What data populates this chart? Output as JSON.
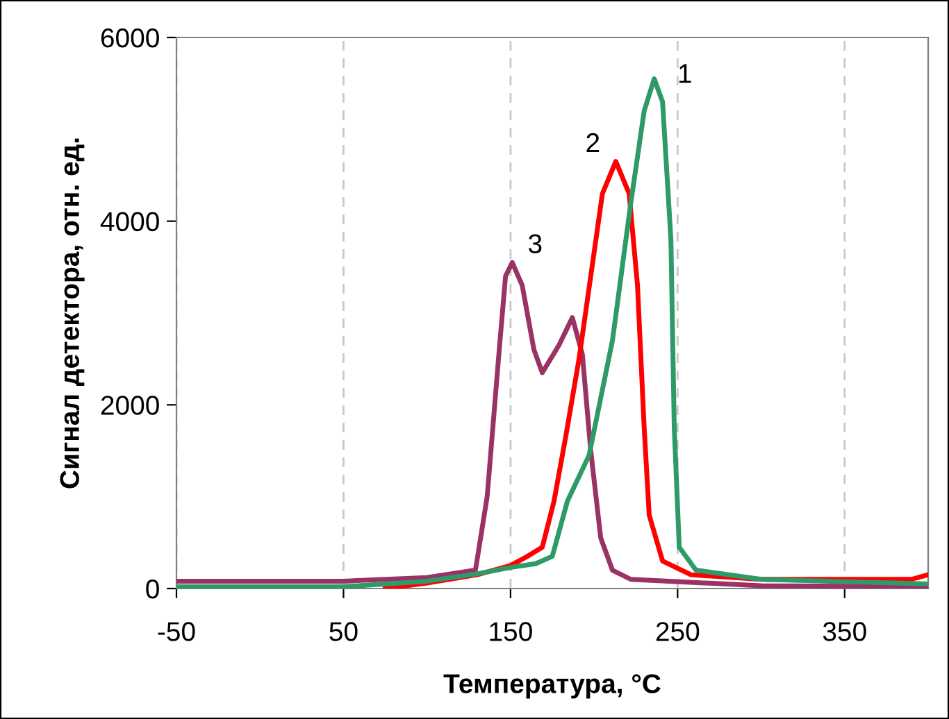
{
  "chart_data": {
    "type": "line",
    "xlabel": "Температура, °C",
    "ylabel": "Сигнал детектора, отн. ед.",
    "xlim": [
      -50,
      400
    ],
    "xticks": [
      -50,
      50,
      150,
      250,
      350
    ],
    "ylim": [
      0,
      6000
    ],
    "yticks": [
      0,
      2000,
      4000,
      6000
    ],
    "grid": "x",
    "legend": false,
    "series": [
      {
        "name": "1",
        "color": "#2e9a68",
        "x": [
          -50,
          50,
          100,
          130,
          150,
          165,
          175,
          184,
          197,
          211,
          222,
          230,
          236,
          241,
          246,
          248,
          251,
          261,
          300,
          400
        ],
        "values": [
          20,
          20,
          80,
          160,
          230,
          270,
          350,
          950,
          1450,
          2700,
          4200,
          5200,
          5550,
          5300,
          3800,
          1750,
          450,
          200,
          100,
          50
        ]
      },
      {
        "name": "2",
        "color": "#ff0000",
        "x": [
          75,
          100,
          130,
          150,
          160,
          169,
          176,
          183,
          191,
          198,
          205,
          213,
          221,
          226,
          230,
          233,
          241,
          258,
          300,
          390,
          400
        ],
        "values": [
          0,
          60,
          150,
          250,
          350,
          450,
          950,
          1650,
          2500,
          3400,
          4300,
          4650,
          4300,
          3300,
          1750,
          800,
          300,
          150,
          100,
          100,
          150
        ]
      },
      {
        "name": "3",
        "color": "#993366",
        "x": [
          -50,
          50,
          100,
          129,
          136,
          143,
          147,
          151,
          157,
          164,
          169,
          179,
          187,
          193,
          198,
          204,
          211,
          222,
          300,
          400
        ],
        "values": [
          80,
          80,
          120,
          200,
          1000,
          2550,
          3400,
          3550,
          3300,
          2600,
          2350,
          2650,
          2950,
          2550,
          1500,
          550,
          200,
          100,
          30,
          20
        ]
      }
    ]
  }
}
